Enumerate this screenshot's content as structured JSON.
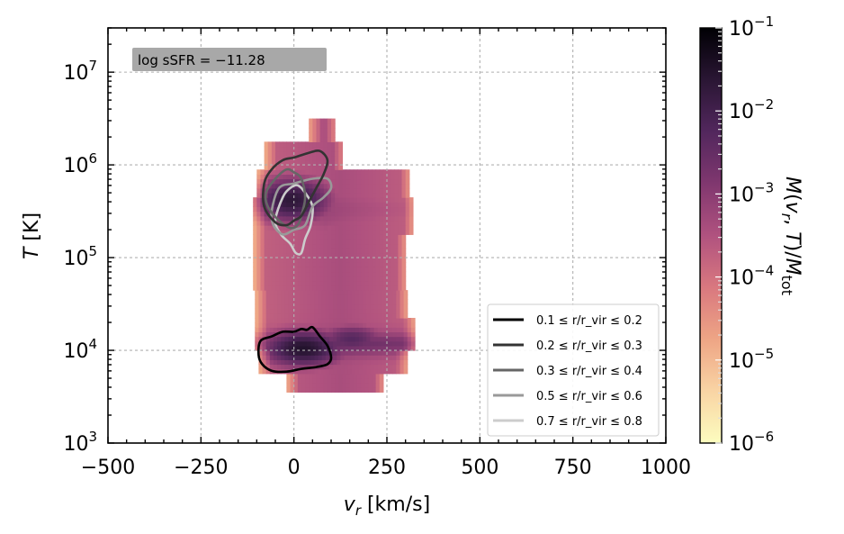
{
  "chart_data": {
    "type": "heatmap",
    "xlabel": "v_r [km/s]",
    "ylabel": "T [K]",
    "xlim": [
      -500,
      1000
    ],
    "ylim": [
      1000,
      30000000
    ],
    "yscale": "log",
    "grid": true,
    "x_ticks": [
      "−500",
      "−250",
      "0",
      "250",
      "500",
      "750",
      "1000"
    ],
    "x_tick_values": [
      -500,
      -250,
      0,
      250,
      500,
      750,
      1000
    ],
    "y_ticks": [
      {
        "base": "10",
        "exp": "3",
        "value": 1000
      },
      {
        "base": "10",
        "exp": "4",
        "value": 10000
      },
      {
        "base": "10",
        "exp": "5",
        "value": 100000
      },
      {
        "base": "10",
        "exp": "6",
        "value": 1000000
      },
      {
        "base": "10",
        "exp": "7",
        "value": 10000000
      }
    ],
    "annotation": "log sSFR = −11.28",
    "colorbar": {
      "label": "M(v_r, T)/M_tot",
      "scale": "log",
      "range": [
        1e-06,
        0.1
      ],
      "ticks": [
        {
          "base": "10",
          "exp": "−1",
          "value": 0.1
        },
        {
          "base": "10",
          "exp": "−2",
          "value": 0.01
        },
        {
          "base": "10",
          "exp": "−3",
          "value": 0.001
        },
        {
          "base": "10",
          "exp": "−4",
          "value": 0.0001
        },
        {
          "base": "10",
          "exp": "−5",
          "value": 1e-05
        },
        {
          "base": "10",
          "exp": "−6",
          "value": 1e-06
        }
      ],
      "colormap": [
        "#fcfdbf",
        "#f9d4a4",
        "#eea585",
        "#d9787f",
        "#b0527f",
        "#80376f",
        "#52275d",
        "#2a1634",
        "#000004"
      ]
    },
    "legend_position": "lower-right",
    "legend": [
      {
        "label": "0.1 ≤ r/r_vir ≤ 0.2",
        "color": "#000000"
      },
      {
        "label": "0.2 ≤ r/r_vir ≤ 0.3",
        "color": "#333333"
      },
      {
        "label": "0.3 ≤ r/r_vir ≤ 0.4",
        "color": "#666666"
      },
      {
        "label": "0.5 ≤ r/r_vir ≤ 0.6",
        "color": "#999999"
      },
      {
        "label": "0.7 ≤ r/r_vir ≤ 0.8",
        "color": "#cccccc"
      }
    ],
    "density_peaks": [
      {
        "v_r": 20,
        "logT": 4.0,
        "value": 0.03
      },
      {
        "v_r": -10,
        "logT": 5.6,
        "value": 0.02
      },
      {
        "v_r": 150,
        "logT": 4.1,
        "value": 0.005
      }
    ],
    "contours": [
      {
        "series": "0.1 ≤ r/r_vir ≤ 0.2",
        "points": [
          [
            -95,
            3.95
          ],
          [
            -90,
            4.1
          ],
          [
            -60,
            4.15
          ],
          [
            -30,
            4.2
          ],
          [
            0,
            4.2
          ],
          [
            20,
            4.23
          ],
          [
            35,
            4.22
          ],
          [
            50,
            4.25
          ],
          [
            70,
            4.15
          ],
          [
            90,
            4.05
          ],
          [
            100,
            3.92
          ],
          [
            90,
            3.85
          ],
          [
            60,
            3.82
          ],
          [
            20,
            3.8
          ],
          [
            -20,
            3.77
          ],
          [
            -60,
            3.78
          ],
          [
            -85,
            3.85
          ]
        ]
      },
      {
        "series": "0.2 ≤ r/r_vir ≤ 0.3",
        "points": [
          [
            -80,
            5.8
          ],
          [
            -60,
            5.95
          ],
          [
            -30,
            6.05
          ],
          [
            0,
            6.08
          ],
          [
            40,
            6.13
          ],
          [
            70,
            6.15
          ],
          [
            90,
            6.05
          ],
          [
            80,
            5.9
          ],
          [
            60,
            5.75
          ],
          [
            40,
            5.6
          ],
          [
            20,
            5.45
          ],
          [
            0,
            5.4
          ],
          [
            -20,
            5.35
          ],
          [
            -50,
            5.38
          ],
          [
            -80,
            5.55
          ]
        ]
      },
      {
        "series": "0.3 ≤ r/r_vir ≤ 0.4",
        "points": [
          [
            -75,
            5.7
          ],
          [
            -50,
            5.85
          ],
          [
            -20,
            5.95
          ],
          [
            0,
            5.92
          ],
          [
            20,
            5.85
          ],
          [
            30,
            5.65
          ],
          [
            20,
            5.45
          ],
          [
            10,
            5.35
          ],
          [
            -10,
            5.32
          ],
          [
            -40,
            5.4
          ],
          [
            -70,
            5.55
          ]
        ]
      },
      {
        "series": "0.5 ≤ r/r_vir ≤ 0.6",
        "points": [
          [
            -60,
            5.5
          ],
          [
            -40,
            5.75
          ],
          [
            0,
            5.8
          ],
          [
            50,
            5.85
          ],
          [
            90,
            5.85
          ],
          [
            100,
            5.75
          ],
          [
            80,
            5.65
          ],
          [
            50,
            5.55
          ],
          [
            30,
            5.35
          ],
          [
            0,
            5.3
          ],
          [
            -30,
            5.25
          ],
          [
            -55,
            5.35
          ]
        ]
      },
      {
        "series": "0.7 ≤ r/r_vir ≤ 0.8",
        "points": [
          [
            -50,
            5.4
          ],
          [
            -30,
            5.65
          ],
          [
            -10,
            5.75
          ],
          [
            10,
            5.78
          ],
          [
            30,
            5.7
          ],
          [
            50,
            5.55
          ],
          [
            45,
            5.35
          ],
          [
            30,
            5.2
          ],
          [
            20,
            5.05
          ],
          [
            5,
            5.05
          ],
          [
            -10,
            5.15
          ],
          [
            -35,
            5.25
          ]
        ]
      }
    ]
  }
}
